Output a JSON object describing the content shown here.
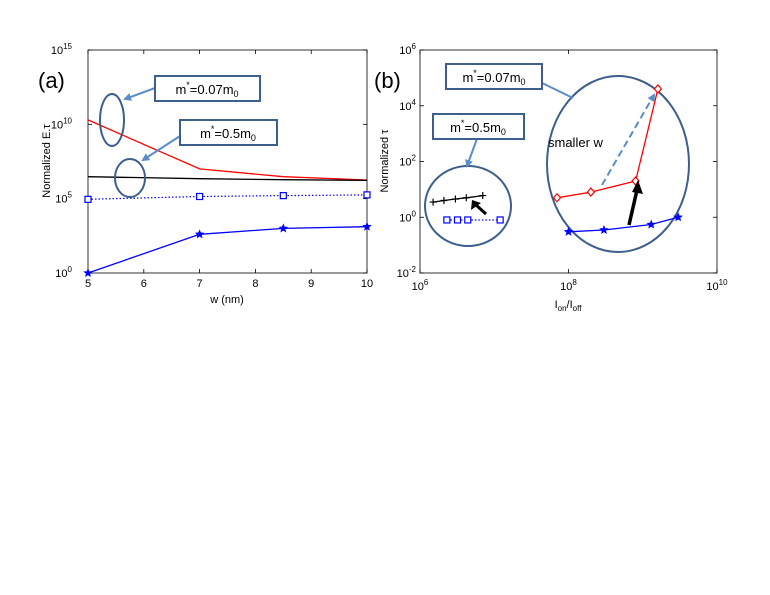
{
  "chart_data": [
    {
      "panel_label": "(a)",
      "type": "line",
      "xlabel": "w (nm)",
      "ylabel": "Normalized E.τ",
      "xlim": [
        5,
        10
      ],
      "ylim": [
        1,
        1000000000000000.0
      ],
      "y_scale": "log",
      "x_ticks": [
        5,
        6,
        7,
        8,
        9,
        10
      ],
      "y_ticks": [
        {
          "base": "10",
          "exp": "0",
          "value": 1
        },
        {
          "base": "10",
          "exp": "5",
          "value": 100000.0
        },
        {
          "base": "10",
          "exp": "10",
          "value": 10000000000.0
        },
        {
          "base": "10",
          "exp": "15",
          "value": 1000000000000000.0
        }
      ],
      "series": [
        {
          "color": "#ff0000",
          "marker": "none",
          "line": "solid",
          "x": [
            5,
            7,
            8.5,
            10
          ],
          "y": [
            20000000000.0,
            10000000.0,
            3000000.0,
            1800000.0
          ]
        },
        {
          "color": "#000000",
          "marker": "none",
          "line": "solid",
          "x": [
            5,
            7,
            8.5,
            10
          ],
          "y": [
            3000000.0,
            2200000.0,
            1900000.0,
            1700000.0
          ]
        },
        {
          "color": "#0000ff",
          "marker": "square",
          "line": "dotted",
          "x": [
            5,
            7,
            8.5,
            10
          ],
          "y": [
            90000.0,
            140000.0,
            160000.0,
            180000.0
          ]
        },
        {
          "color": "#0000ff",
          "marker": "star",
          "line": "solid",
          "x": [
            5,
            7,
            8.5,
            10
          ],
          "y": [
            1,
            400,
            1000,
            1300
          ]
        }
      ],
      "annotations": [
        {
          "base": "m",
          "sup": "*",
          "mid": "=0.07m",
          "sub": "0"
        },
        {
          "base": "m",
          "sup": "*",
          "mid": "=0.5m",
          "sub": "0"
        }
      ]
    },
    {
      "panel_label": "(b)",
      "type": "line",
      "xlabel": {
        "main": "I",
        "sub1": "on",
        "slash": "/I",
        "sub2": "off"
      },
      "ylabel": "Normalized τ",
      "x_scale": "log",
      "y_scale": "log",
      "xlim": [
        1000000.0,
        10000000000.0
      ],
      "ylim": [
        0.01,
        1000000.0
      ],
      "x_ticks": [
        {
          "base": "10",
          "exp": "6",
          "value": 1000000.0
        },
        {
          "base": "10",
          "exp": "8",
          "value": 100000000.0
        },
        {
          "base": "10",
          "exp": "10",
          "value": 10000000000.0
        }
      ],
      "y_ticks": [
        {
          "base": "10",
          "exp": "-2",
          "value": 0.01
        },
        {
          "base": "10",
          "exp": "0",
          "value": 1
        },
        {
          "base": "10",
          "exp": "2",
          "value": 100
        },
        {
          "base": "10",
          "exp": "4",
          "value": 10000.0
        },
        {
          "base": "10",
          "exp": "6",
          "value": 1000000.0
        }
      ],
      "series": [
        {
          "color": "#000000",
          "marker": "plus",
          "line": "solid",
          "x": [
            1500000.0,
            2100000.0,
            3000000.0,
            4200000.0,
            7000000.0
          ],
          "y": [
            3.5,
            4,
            4.5,
            5,
            6
          ]
        },
        {
          "color": "#0000ff",
          "marker": "square",
          "line": "dotted",
          "x": [
            2300000.0,
            3200000.0,
            4400000.0,
            12000000.0
          ],
          "y": [
            0.8,
            0.8,
            0.8,
            0.8
          ]
        },
        {
          "color": "#ff0000",
          "marker": "diamond",
          "line": "solid",
          "x": [
            70000000.0,
            200000000.0,
            800000000.0,
            1600000000.0
          ],
          "y": [
            5,
            8,
            20,
            40000
          ]
        },
        {
          "color": "#0000ff",
          "marker": "star",
          "line": "solid",
          "x": [
            100000000.0,
            300000000.0,
            1300000000.0,
            3000000000.0
          ],
          "y": [
            0.3,
            0.35,
            0.55,
            1
          ]
        }
      ],
      "annotations": [
        {
          "base": "m",
          "sup": "*",
          "mid": "=0.07m",
          "sub": "0"
        },
        {
          "base": "m",
          "sup": "*",
          "mid": "=0.5m",
          "sub": "0"
        },
        {
          "text": "smaller w"
        }
      ]
    }
  ]
}
